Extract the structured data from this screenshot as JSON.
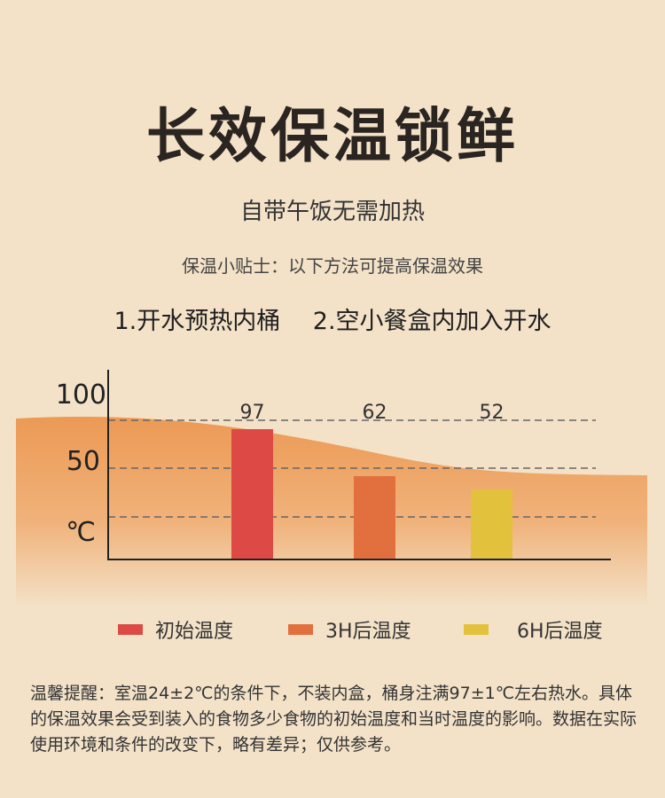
{
  "header": {
    "title": "长效保温锁鲜",
    "subtitle": "自带午饭无需加热",
    "tip": "保温小贴士：以下方法可提高保温效果",
    "method1": "1.开水预热内桶",
    "method2": "2.空小餐盒内加入开水"
  },
  "chart_data": {
    "type": "bar",
    "categories": [
      "初始温度",
      "3H后温度",
      "6H后温度"
    ],
    "values": [
      97,
      62,
      52
    ],
    "colors": [
      "#dd4a45",
      "#e2703f",
      "#e2c23c"
    ],
    "yticks": [
      {
        "label": "100"
      },
      {
        "label": "50"
      },
      {
        "label": "℃"
      }
    ],
    "grid": "dashed",
    "legend_position": "bottom"
  },
  "legend": {
    "items": [
      {
        "label": "初始温度",
        "color": "#dd4a45"
      },
      {
        "label": "3H后温度",
        "color": "#e2703f"
      },
      {
        "label": "6H后温度",
        "color": "#e2c23c"
      }
    ]
  },
  "note": {
    "text": "温馨提醒：室温24±2℃的条件下，不装内盒，桶身注满97±1℃左右热水。具体的保温效果会受到装入的食物多少食物的初始温度和当时温度的影响。数据在实际使用环境和条件的改变下，略有差异；仅供参考。"
  }
}
